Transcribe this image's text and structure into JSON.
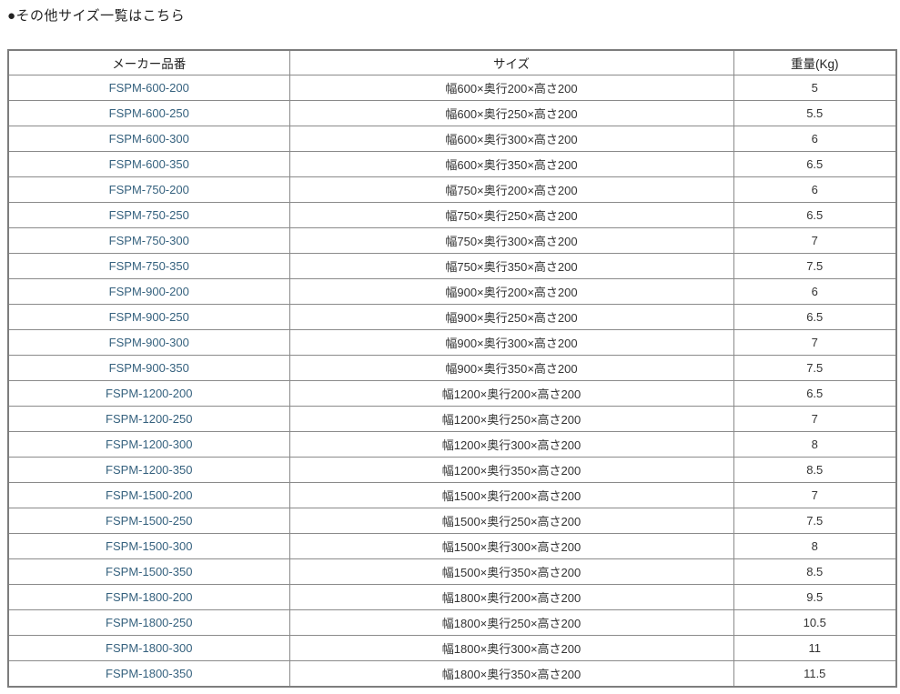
{
  "page": {
    "title": "●その他サイズ一覧はこちら"
  },
  "colors": {
    "link": "#35617e",
    "border_inner": "#8a8a8a",
    "border_outer": "#7d7d7d",
    "text": "#333333"
  },
  "table": {
    "columns": [
      "メーカー品番",
      "サイズ",
      "重量(Kg)"
    ],
    "rows": [
      {
        "part": "FSPM-600-200",
        "size": "幅600×奥行200×高さ200",
        "weight": "5"
      },
      {
        "part": "FSPM-600-250",
        "size": "幅600×奥行250×高さ200",
        "weight": "5.5"
      },
      {
        "part": "FSPM-600-300",
        "size": "幅600×奥行300×高さ200",
        "weight": "6"
      },
      {
        "part": "FSPM-600-350",
        "size": "幅600×奥行350×高さ200",
        "weight": "6.5"
      },
      {
        "part": "FSPM-750-200",
        "size": "幅750×奥行200×高さ200",
        "weight": "6"
      },
      {
        "part": "FSPM-750-250",
        "size": "幅750×奥行250×高さ200",
        "weight": "6.5"
      },
      {
        "part": "FSPM-750-300",
        "size": "幅750×奥行300×高さ200",
        "weight": "7"
      },
      {
        "part": "FSPM-750-350",
        "size": "幅750×奥行350×高さ200",
        "weight": "7.5"
      },
      {
        "part": "FSPM-900-200",
        "size": "幅900×奥行200×高さ200",
        "weight": "6"
      },
      {
        "part": "FSPM-900-250",
        "size": "幅900×奥行250×高さ200",
        "weight": "6.5"
      },
      {
        "part": "FSPM-900-300",
        "size": "幅900×奥行300×高さ200",
        "weight": "7"
      },
      {
        "part": "FSPM-900-350",
        "size": "幅900×奥行350×高さ200",
        "weight": "7.5"
      },
      {
        "part": "FSPM-1200-200",
        "size": "幅1200×奥行200×高さ200",
        "weight": "6.5"
      },
      {
        "part": "FSPM-1200-250",
        "size": "幅1200×奥行250×高さ200",
        "weight": "7"
      },
      {
        "part": "FSPM-1200-300",
        "size": "幅1200×奥行300×高さ200",
        "weight": "8"
      },
      {
        "part": "FSPM-1200-350",
        "size": "幅1200×奥行350×高さ200",
        "weight": "8.5"
      },
      {
        "part": "FSPM-1500-200",
        "size": "幅1500×奥行200×高さ200",
        "weight": "7"
      },
      {
        "part": "FSPM-1500-250",
        "size": "幅1500×奥行250×高さ200",
        "weight": "7.5"
      },
      {
        "part": "FSPM-1500-300",
        "size": "幅1500×奥行300×高さ200",
        "weight": "8"
      },
      {
        "part": "FSPM-1500-350",
        "size": "幅1500×奥行350×高さ200",
        "weight": "8.5"
      },
      {
        "part": "FSPM-1800-200",
        "size": "幅1800×奥行200×高さ200",
        "weight": "9.5"
      },
      {
        "part": "FSPM-1800-250",
        "size": "幅1800×奥行250×高さ200",
        "weight": "10.5"
      },
      {
        "part": "FSPM-1800-300",
        "size": "幅1800×奥行300×高さ200",
        "weight": "11"
      },
      {
        "part": "FSPM-1800-350",
        "size": "幅1800×奥行350×高さ200",
        "weight": "11.5"
      }
    ]
  }
}
